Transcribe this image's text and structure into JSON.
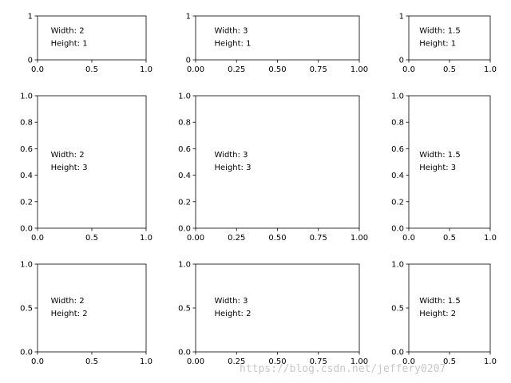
{
  "figure": {
    "background": "#ffffff",
    "axis_color": "#000000"
  },
  "chart_data": [
    {
      "type": "empty-axes",
      "row": 0,
      "col": 0,
      "annotation": [
        "Width: 2",
        "Height: 1"
      ],
      "xlim": [
        0,
        1
      ],
      "ylim": [
        0,
        1
      ],
      "xticks": [
        "0.0",
        "0.5",
        "1.0"
      ],
      "yticks": [
        "0",
        "1"
      ]
    },
    {
      "type": "empty-axes",
      "row": 0,
      "col": 1,
      "annotation": [
        "Width: 3",
        "Height: 1"
      ],
      "xlim": [
        0,
        1
      ],
      "ylim": [
        0,
        1
      ],
      "xticks": [
        "0.00",
        "0.25",
        "0.50",
        "0.75",
        "1.00"
      ],
      "yticks": [
        "0",
        "1"
      ]
    },
    {
      "type": "empty-axes",
      "row": 0,
      "col": 2,
      "annotation": [
        "Width: 1.5",
        "Height: 1"
      ],
      "xlim": [
        0,
        1
      ],
      "ylim": [
        0,
        1
      ],
      "xticks": [
        "0.0",
        "0.5",
        "1.0"
      ],
      "yticks": [
        "0",
        "1"
      ]
    },
    {
      "type": "empty-axes",
      "row": 1,
      "col": 0,
      "annotation": [
        "Width: 2",
        "Height: 3"
      ],
      "xlim": [
        0,
        1
      ],
      "ylim": [
        0,
        1
      ],
      "xticks": [
        "0.0",
        "0.5",
        "1.0"
      ],
      "yticks": [
        "0.0",
        "0.2",
        "0.4",
        "0.6",
        "0.8",
        "1.0"
      ]
    },
    {
      "type": "empty-axes",
      "row": 1,
      "col": 1,
      "annotation": [
        "Width: 3",
        "Height: 3"
      ],
      "xlim": [
        0,
        1
      ],
      "ylim": [
        0,
        1
      ],
      "xticks": [
        "0.00",
        "0.25",
        "0.50",
        "0.75",
        "1.00"
      ],
      "yticks": [
        "0.0",
        "0.2",
        "0.4",
        "0.6",
        "0.8",
        "1.0"
      ]
    },
    {
      "type": "empty-axes",
      "row": 1,
      "col": 2,
      "annotation": [
        "Width: 1.5",
        "Height: 3"
      ],
      "xlim": [
        0,
        1
      ],
      "ylim": [
        0,
        1
      ],
      "xticks": [
        "0.0",
        "0.5",
        "1.0"
      ],
      "yticks": [
        "0.0",
        "0.2",
        "0.4",
        "0.6",
        "0.8",
        "1.0"
      ]
    },
    {
      "type": "empty-axes",
      "row": 2,
      "col": 0,
      "annotation": [
        "Width: 2",
        "Height: 2"
      ],
      "xlim": [
        0,
        1
      ],
      "ylim": [
        0,
        1
      ],
      "xticks": [
        "0.0",
        "0.5",
        "1.0"
      ],
      "yticks": [
        "0.0",
        "0.5",
        "1.0"
      ]
    },
    {
      "type": "empty-axes",
      "row": 2,
      "col": 1,
      "annotation": [
        "Width: 3",
        "Height: 2"
      ],
      "xlim": [
        0,
        1
      ],
      "ylim": [
        0,
        1
      ],
      "xticks": [
        "0.00",
        "0.25",
        "0.50",
        "0.75",
        "1.00"
      ],
      "yticks": [
        "0.0",
        "0.5",
        "1.0"
      ]
    },
    {
      "type": "empty-axes",
      "row": 2,
      "col": 2,
      "annotation": [
        "Width: 1.5",
        "Height: 2"
      ],
      "xlim": [
        0,
        1
      ],
      "ylim": [
        0,
        1
      ],
      "xticks": [
        "0.0",
        "0.5",
        "1.0"
      ],
      "yticks": [
        "0.0",
        "0.5",
        "1.0"
      ]
    }
  ],
  "watermark": "https://blog.csdn.net/jeffery0207"
}
